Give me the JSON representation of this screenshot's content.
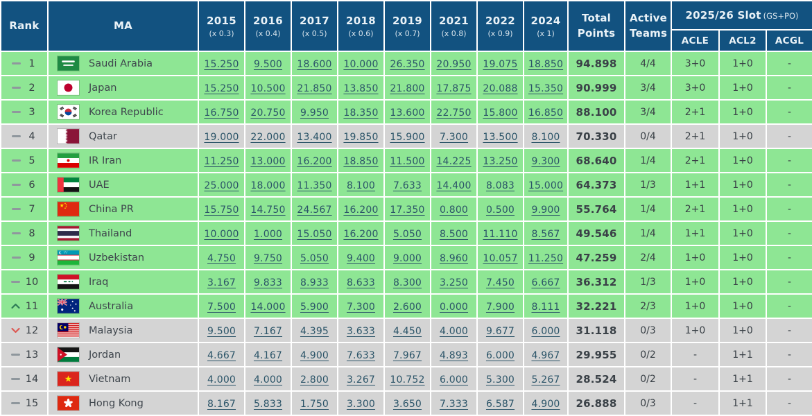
{
  "colors": {
    "header_bg": "#125280",
    "row_green": "#8EE694",
    "row_gray": "#D4D4D4",
    "link": "#2B5468",
    "rank_up": "#2E7D57",
    "rank_down": "#DC5852"
  },
  "icons": {
    "rank_same": "dash",
    "rank_up": "chevron-up",
    "rank_down": "chevron-down"
  },
  "table": {
    "header": {
      "rank": "Rank",
      "ma": "MA",
      "years": [
        {
          "label": "2015",
          "multiplier": "(x 0.3)"
        },
        {
          "label": "2016",
          "multiplier": "(x 0.4)"
        },
        {
          "label": "2017",
          "multiplier": "(x 0.5)"
        },
        {
          "label": "2018",
          "multiplier": "(x 0.6)"
        },
        {
          "label": "2019",
          "multiplier": "(x 0.7)"
        },
        {
          "label": "2021",
          "multiplier": "(x 0.8)"
        },
        {
          "label": "2022",
          "multiplier": "(x 0.9)"
        },
        {
          "label": "2024",
          "multiplier": "(x 1)"
        }
      ],
      "total_points": "Total Points",
      "active_teams": "Active Teams",
      "slot_group": "2025/26 Slot",
      "slot_note": "(GS+PO)",
      "slot_cols": [
        "ACLE",
        "ACL2",
        "ACGL"
      ]
    },
    "rows": [
      {
        "movement": "same",
        "rank": "1",
        "country": "Saudi Arabia",
        "flag": "saudi-arabia",
        "row_color": "green",
        "points": [
          "15.250",
          "9.500",
          "18.600",
          "10.000",
          "26.350",
          "20.950",
          "19.075",
          "18.850"
        ],
        "total_points": "94.898",
        "active_teams": "4/4",
        "slots": {
          "acle": "3+0",
          "acl2": "1+0",
          "acgl": "-"
        }
      },
      {
        "movement": "same",
        "rank": "2",
        "country": "Japan",
        "flag": "japan",
        "row_color": "green",
        "points": [
          "15.250",
          "10.500",
          "21.850",
          "13.850",
          "21.800",
          "17.875",
          "20.088",
          "15.350"
        ],
        "total_points": "90.999",
        "active_teams": "3/4",
        "slots": {
          "acle": "3+0",
          "acl2": "1+0",
          "acgl": "-"
        }
      },
      {
        "movement": "same",
        "rank": "3",
        "country": "Korea Republic",
        "flag": "korea-republic",
        "row_color": "green",
        "points": [
          "16.750",
          "20.750",
          "9.950",
          "18.350",
          "13.600",
          "22.750",
          "15.800",
          "16.850"
        ],
        "total_points": "88.100",
        "active_teams": "3/4",
        "slots": {
          "acle": "2+1",
          "acl2": "1+0",
          "acgl": "-"
        }
      },
      {
        "movement": "same",
        "rank": "4",
        "country": "Qatar",
        "flag": "qatar",
        "row_color": "gray",
        "points": [
          "19.000",
          "22.000",
          "13.400",
          "19.850",
          "15.900",
          "7.300",
          "13.500",
          "8.100"
        ],
        "total_points": "70.330",
        "active_teams": "0/4",
        "slots": {
          "acle": "2+1",
          "acl2": "1+0",
          "acgl": "-"
        }
      },
      {
        "movement": "same",
        "rank": "5",
        "country": "IR Iran",
        "flag": "ir-iran",
        "row_color": "green",
        "points": [
          "11.250",
          "13.000",
          "16.200",
          "18.850",
          "11.500",
          "14.225",
          "13.250",
          "9.300"
        ],
        "total_points": "68.640",
        "active_teams": "1/4",
        "slots": {
          "acle": "2+1",
          "acl2": "1+0",
          "acgl": "-"
        }
      },
      {
        "movement": "same",
        "rank": "6",
        "country": "UAE",
        "flag": "uae",
        "row_color": "green",
        "points": [
          "25.000",
          "18.000",
          "11.350",
          "8.100",
          "7.633",
          "14.400",
          "8.083",
          "15.000"
        ],
        "total_points": "64.373",
        "active_teams": "1/3",
        "slots": {
          "acle": "1+1",
          "acl2": "1+0",
          "acgl": "-"
        }
      },
      {
        "movement": "same",
        "rank": "7",
        "country": "China PR",
        "flag": "china-pr",
        "row_color": "green",
        "points": [
          "15.750",
          "14.750",
          "24.567",
          "16.200",
          "17.350",
          "0.800",
          "0.500",
          "9.900"
        ],
        "total_points": "55.764",
        "active_teams": "1/4",
        "slots": {
          "acle": "2+1",
          "acl2": "1+0",
          "acgl": "-"
        }
      },
      {
        "movement": "same",
        "rank": "8",
        "country": "Thailand",
        "flag": "thailand",
        "row_color": "green",
        "points": [
          "10.000",
          "1.000",
          "15.050",
          "16.200",
          "5.050",
          "8.500",
          "11.110",
          "8.567"
        ],
        "total_points": "49.546",
        "active_teams": "1/4",
        "slots": {
          "acle": "1+1",
          "acl2": "1+0",
          "acgl": "-"
        }
      },
      {
        "movement": "same",
        "rank": "9",
        "country": "Uzbekistan",
        "flag": "uzbekistan",
        "row_color": "green",
        "points": [
          "4.750",
          "9.750",
          "5.050",
          "9.400",
          "9.000",
          "8.960",
          "10.057",
          "11.250"
        ],
        "total_points": "47.259",
        "active_teams": "2/4",
        "slots": {
          "acle": "1+0",
          "acl2": "1+0",
          "acgl": "-"
        }
      },
      {
        "movement": "same",
        "rank": "10",
        "country": "Iraq",
        "flag": "iraq",
        "row_color": "green",
        "points": [
          "3.167",
          "9.833",
          "8.933",
          "8.633",
          "8.300",
          "3.250",
          "7.450",
          "6.667"
        ],
        "total_points": "36.312",
        "active_teams": "1/3",
        "slots": {
          "acle": "1+0",
          "acl2": "1+0",
          "acgl": "-"
        }
      },
      {
        "movement": "up",
        "rank": "11",
        "country": "Australia",
        "flag": "australia",
        "row_color": "green",
        "points": [
          "7.500",
          "14.000",
          "5.900",
          "7.300",
          "2.600",
          "0.000",
          "7.900",
          "8.111"
        ],
        "total_points": "32.221",
        "active_teams": "2/3",
        "slots": {
          "acle": "1+0",
          "acl2": "1+0",
          "acgl": "-"
        }
      },
      {
        "movement": "down",
        "rank": "12",
        "country": "Malaysia",
        "flag": "malaysia",
        "row_color": "gray",
        "points": [
          "9.500",
          "7.167",
          "4.395",
          "3.633",
          "4.450",
          "4.000",
          "9.677",
          "6.000"
        ],
        "total_points": "31.118",
        "active_teams": "0/3",
        "slots": {
          "acle": "1+0",
          "acl2": "1+0",
          "acgl": "-"
        }
      },
      {
        "movement": "same",
        "rank": "13",
        "country": "Jordan",
        "flag": "jordan",
        "row_color": "gray",
        "points": [
          "4.667",
          "4.167",
          "4.900",
          "7.633",
          "7.967",
          "4.893",
          "6.000",
          "4.967"
        ],
        "total_points": "29.955",
        "active_teams": "0/2",
        "slots": {
          "acle": "-",
          "acl2": "1+1",
          "acgl": "-"
        }
      },
      {
        "movement": "same",
        "rank": "14",
        "country": "Vietnam",
        "flag": "vietnam",
        "row_color": "gray",
        "points": [
          "4.000",
          "4.000",
          "2.800",
          "3.267",
          "10.752",
          "6.000",
          "5.300",
          "5.267"
        ],
        "total_points": "28.524",
        "active_teams": "0/2",
        "slots": {
          "acle": "-",
          "acl2": "1+1",
          "acgl": "-"
        }
      },
      {
        "movement": "same",
        "rank": "15",
        "country": "Hong Kong",
        "flag": "hong-kong",
        "row_color": "gray",
        "points": [
          "8.167",
          "5.833",
          "1.750",
          "3.300",
          "3.650",
          "7.333",
          "6.587",
          "4.900"
        ],
        "total_points": "26.888",
        "active_teams": "0/3",
        "slots": {
          "acle": "-",
          "acl2": "1+1",
          "acgl": "-"
        }
      }
    ]
  }
}
